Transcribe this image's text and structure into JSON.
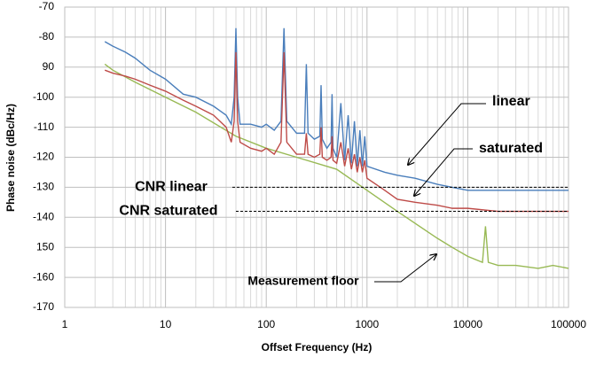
{
  "chart_data": {
    "type": "line",
    "ylabel": "Phase noise (dBc/Hz)",
    "xlabel": "Offset Frequency (Hz)",
    "xlog": true,
    "xlim": [
      1,
      100000
    ],
    "xticks": [
      1,
      10,
      100,
      1000,
      10000,
      100000
    ],
    "ylim": [
      -170,
      -70
    ],
    "yticks": [
      -70,
      -80,
      {
        "value": -90,
        "label": "90"
      },
      -100,
      -110,
      -120,
      -130,
      -140,
      {
        "value": -150,
        "label": "150"
      },
      -160,
      -170
    ],
    "grid": true,
    "series": [
      {
        "name": "linear",
        "color": "#4a7ebb",
        "x": [
          2.5,
          3,
          4,
          5,
          7,
          10,
          15,
          20,
          30,
          40,
          45,
          48,
          50,
          52,
          55,
          70,
          90,
          100,
          120,
          140,
          150,
          160,
          200,
          240,
          250,
          260,
          300,
          340,
          350,
          360,
          400,
          440,
          450,
          460,
          500,
          550,
          600,
          650,
          700,
          750,
          800,
          850,
          900,
          950,
          1000,
          1500,
          2000,
          3000,
          5000,
          7000,
          10000,
          20000,
          50000,
          100000
        ],
        "values": [
          -81.5,
          -83,
          -85,
          -87,
          -91,
          -94,
          -99,
          -100,
          -103,
          -106,
          -109,
          -100,
          -77,
          -100,
          -109,
          -109,
          -110,
          -109,
          -111,
          -108,
          -77,
          -108,
          -112,
          -112,
          -89,
          -112,
          -114,
          -113,
          -96,
          -114,
          -117,
          -115,
          -99,
          -117,
          -120,
          -102,
          -121,
          -106,
          -122,
          -108,
          -123,
          -111,
          -123,
          -113,
          -123,
          -125,
          -126,
          -127,
          -129,
          -130,
          -131,
          -131,
          -131,
          -131
        ]
      },
      {
        "name": "saturated",
        "color": "#be4b48",
        "x": [
          2.5,
          3,
          4,
          5,
          7,
          10,
          15,
          20,
          30,
          40,
          45,
          48,
          50,
          52,
          55,
          70,
          90,
          100,
          120,
          140,
          150,
          160,
          200,
          240,
          250,
          260,
          300,
          340,
          350,
          360,
          400,
          440,
          450,
          460,
          500,
          550,
          600,
          650,
          700,
          750,
          800,
          850,
          900,
          950,
          1000,
          1500,
          2000,
          3000,
          5000,
          7000,
          10000,
          20000,
          50000,
          100000
        ],
        "values": [
          -91,
          -92,
          -93,
          -94,
          -96,
          -98,
          -101,
          -103,
          -106,
          -110,
          -115,
          -108,
          -85,
          -108,
          -115,
          -117,
          -118,
          -117,
          -119,
          -115,
          -85,
          -115,
          -119,
          -119,
          -112,
          -119,
          -120,
          -119,
          -110,
          -120,
          -121,
          -120,
          -113,
          -121,
          -122,
          -115,
          -123,
          -117,
          -124,
          -119,
          -125,
          -120,
          -125,
          -121,
          -127,
          -131,
          -134,
          -135,
          -136,
          -137,
          -137,
          -138,
          -138,
          -138
        ]
      },
      {
        "name": "Measurement floor",
        "color": "#98b954",
        "x": [
          2.5,
          3,
          5,
          10,
          20,
          50,
          100,
          200,
          500,
          1000,
          2000,
          3000,
          5000,
          7000,
          10000,
          14000,
          15000,
          16000,
          20000,
          30000,
          50000,
          70000,
          100000
        ],
        "values": [
          -89,
          -91,
          -95,
          -100,
          -105,
          -113,
          -117,
          -120,
          -124,
          -131,
          -138,
          -142,
          -147,
          -150,
          -153,
          -155,
          -143,
          -155,
          -156,
          -156,
          -157,
          -156,
          -157
        ]
      }
    ],
    "reference_lines": [
      {
        "label": "CNR linear",
        "value": -130
      },
      {
        "label": "CNR saturated",
        "value": -138
      }
    ]
  }
}
